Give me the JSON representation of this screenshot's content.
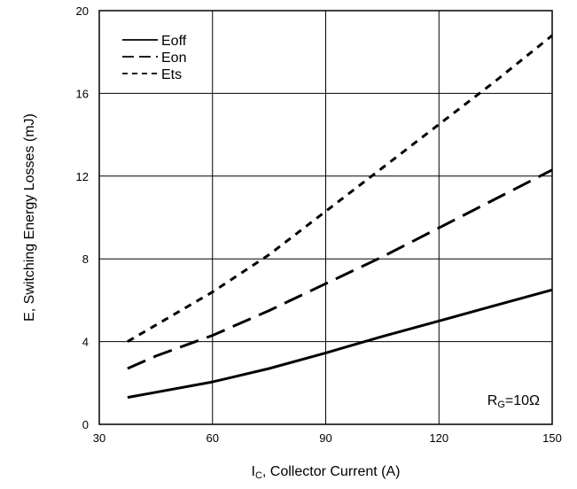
{
  "chart_data": {
    "type": "line",
    "xlabel": {
      "main": "I",
      "sub": "C",
      "rest": ", Collector Current (A)"
    },
    "ylabel": "E, Switching Energy Losses (mJ)",
    "xlim": [
      30,
      150
    ],
    "ylim": [
      0,
      20
    ],
    "xticks": [
      30,
      60,
      90,
      120,
      150
    ],
    "yticks": [
      0,
      4,
      8,
      12,
      16,
      20
    ],
    "grid": true,
    "legend_position": "top-left",
    "annotation": {
      "main": "R",
      "sub": "G",
      "rest": "=10Ω"
    },
    "series": [
      {
        "name": "Eoff",
        "style": "solid",
        "x": [
          37.5,
          45,
          60,
          75,
          90,
          105,
          120,
          135,
          150
        ],
        "y": [
          1.3,
          1.55,
          2.05,
          2.7,
          3.45,
          4.25,
          5.0,
          5.75,
          6.5
        ]
      },
      {
        "name": "Eon",
        "style": "dash",
        "x": [
          37.5,
          45,
          60,
          75,
          90,
          105,
          120,
          135,
          150
        ],
        "y": [
          2.7,
          3.3,
          4.3,
          5.5,
          6.8,
          8.1,
          9.5,
          10.9,
          12.3
        ]
      },
      {
        "name": "Ets",
        "style": "shortdash",
        "x": [
          37.5,
          45,
          60,
          75,
          90,
          105,
          120,
          135,
          150
        ],
        "y": [
          4.0,
          4.8,
          6.4,
          8.2,
          10.3,
          12.4,
          14.5,
          16.6,
          18.8
        ]
      }
    ]
  }
}
